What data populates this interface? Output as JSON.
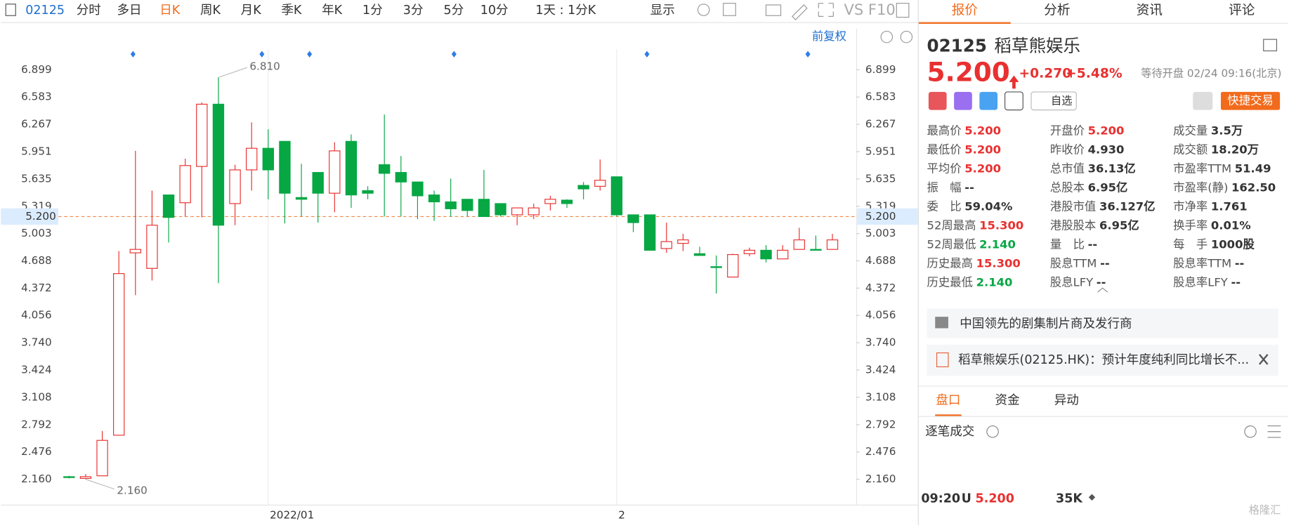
{
  "chart_data": {
    "type": "candlestick",
    "categories": [
      null,
      null,
      null,
      null,
      null,
      null,
      null,
      null,
      null,
      null,
      null,
      null,
      "2022/01",
      null,
      null,
      null,
      null,
      null,
      null,
      null,
      null,
      null,
      null,
      null,
      null,
      null,
      null,
      null,
      null,
      null,
      null,
      null,
      null,
      "2",
      null,
      null,
      null,
      null,
      null,
      null,
      null,
      null,
      null,
      null,
      null,
      null,
      null
    ],
    "open": [
      2.19,
      2.17,
      2.2,
      2.67,
      4.78,
      4.6,
      5.45,
      5.36,
      5.78,
      6.5,
      5.35,
      5.74,
      5.99,
      6.07,
      5.42,
      5.71,
      5.47,
      6.07,
      5.5,
      5.8,
      5.71,
      5.6,
      5.45,
      5.37,
      5.4,
      5.4,
      5.35,
      5.22,
      5.22,
      5.35,
      5.39,
      5.56,
      5.55,
      5.66,
      5.22,
      5.22,
      4.83,
      4.89,
      4.77,
      4.62,
      4.5,
      4.77,
      4.81,
      4.71,
      4.82,
      4.82,
      4.82
    ],
    "high": [
      2.2,
      2.22,
      2.72,
      4.8,
      5.96,
      5.5,
      5.45,
      5.87,
      6.52,
      6.81,
      5.8,
      6.29,
      6.21,
      6.07,
      5.81,
      5.71,
      6.06,
      6.15,
      5.55,
      6.38,
      5.9,
      5.6,
      5.5,
      5.64,
      5.4,
      5.74,
      5.35,
      5.3,
      5.35,
      5.44,
      5.4,
      5.6,
      5.86,
      5.66,
      5.22,
      5.22,
      5.13,
      5.0,
      4.85,
      4.75,
      4.77,
      4.84,
      4.87,
      4.87,
      5.07,
      4.98,
      5.0
    ],
    "low": [
      2.17,
      2.16,
      2.2,
      2.67,
      4.29,
      4.46,
      4.9,
      5.2,
      5.19,
      4.43,
      5.1,
      5.5,
      5.4,
      5.12,
      5.2,
      5.13,
      5.25,
      5.3,
      5.4,
      5.2,
      5.2,
      5.17,
      5.15,
      5.2,
      5.2,
      5.2,
      5.2,
      5.1,
      5.17,
      5.27,
      5.3,
      5.4,
      5.5,
      5.2,
      5.02,
      4.81,
      4.78,
      4.8,
      4.75,
      4.31,
      4.5,
      4.74,
      4.67,
      4.71,
      4.82,
      4.81,
      4.82
    ],
    "close": [
      2.18,
      2.19,
      2.61,
      4.54,
      4.82,
      5.1,
      5.19,
      5.79,
      6.5,
      5.1,
      5.74,
      5.99,
      5.74,
      5.47,
      5.4,
      5.47,
      5.96,
      5.45,
      5.47,
      5.7,
      5.6,
      5.44,
      5.37,
      5.29,
      5.27,
      5.2,
      5.22,
      5.3,
      5.3,
      5.4,
      5.35,
      5.52,
      5.62,
      5.22,
      5.13,
      4.81,
      4.91,
      4.93,
      4.75,
      4.61,
      4.76,
      4.81,
      4.71,
      4.81,
      4.93,
      4.81,
      4.93
    ],
    "up_color": "#e93030",
    "down_color": "#07a744",
    "ylim": [
      1.866,
      7.117
    ],
    "yticks": [
      6.899,
      6.583,
      6.267,
      5.951,
      5.635,
      5.319,
      5.003,
      4.688,
      4.372,
      4.056,
      {
        "value": 3.74,
        "label": "3.740"
      },
      3.424,
      3.108,
      2.792,
      2.476,
      {
        "value": 2.16,
        "label": "2.160"
      }
    ],
    "grid": false,
    "max_label": "6.810",
    "min_label": "2.160",
    "last_price": {
      "value": 5.2,
      "label": "5.200"
    },
    "adjust": "前复权"
  },
  "ui": {
    "toolbar": {
      "code": "02125",
      "periods": [
        "分时",
        "多日",
        "日K",
        "周K",
        "月K",
        "季K",
        "年K",
        "1分",
        "3分",
        "5分",
        "10分"
      ],
      "active": 2,
      "interval": "1天 : 1分K",
      "display": "显示"
    },
    "quote": {
      "tabs": [
        "报价",
        "分析",
        "资讯",
        "评论"
      ],
      "active": 0,
      "code": "02125",
      "name": "稻草熊娱乐",
      "price": "5.200",
      "change": "+0.270",
      "change_pct": "+5.48%",
      "status": "等待开盘 02/24 09:16(北京)",
      "watch": "自选",
      "trade": "快捷交易",
      "stats": [
        [
          {
            "label": "最高价",
            "value": "5.200",
            "color": "#e93030"
          },
          {
            "label": "最低价",
            "value": "5.200",
            "color": "#e93030"
          },
          {
            "label": "平均价",
            "value": "5.200",
            "color": "#e93030"
          },
          {
            "label": "振　幅",
            "value": "--"
          },
          {
            "label": "委　比",
            "value": "59.04%"
          },
          {
            "label": "52周最高",
            "value": "15.300",
            "color": "#e93030"
          },
          {
            "label": "52周最低",
            "value": "2.140",
            "color": "#07a744"
          },
          {
            "label": "历史最高",
            "value": "15.300",
            "color": "#e93030"
          },
          {
            "label": "历史最低",
            "value": "2.140",
            "color": "#07a744"
          }
        ],
        [
          {
            "label": "开盘价",
            "value": "5.200",
            "color": "#e93030"
          },
          {
            "label": "昨收价",
            "value": "4.930"
          },
          {
            "label": "总市值",
            "value": "36.13亿"
          },
          {
            "label": "总股本",
            "value": "6.95亿"
          },
          {
            "label": "港股市值",
            "value": "36.127亿"
          },
          {
            "label": "港股股本",
            "value": "6.95亿"
          },
          {
            "label": "量　比",
            "value": "--"
          },
          {
            "label": "股息TTM",
            "value": "--"
          },
          {
            "label": "股息LFY",
            "value": "--"
          }
        ],
        [
          {
            "label": "成交量",
            "value": "3.5万"
          },
          {
            "label": "成交额",
            "value": "18.20万"
          },
          {
            "label": "市盈率TTM",
            "value": "51.49"
          },
          {
            "label": "市盈率(静)",
            "value": "162.50"
          },
          {
            "label": "市净率",
            "value": "1.761"
          },
          {
            "label": "换手率",
            "value": "0.01%"
          },
          {
            "label": "每　手",
            "value": "1000股"
          },
          {
            "label": "股息率TTM",
            "value": "--"
          },
          {
            "label": "股息率LFY",
            "value": "--"
          }
        ]
      ],
      "profile": "中国领先的剧集制片商及发行商",
      "news": "稻草熊娱乐(02125.HK)：预计年度纯利同比增长不...",
      "bottom_tabs": [
        "盘口",
        "资金",
        "异动"
      ],
      "trades_title": "逐笔成交",
      "trades": [
        {
          "time": "09:20",
          "flag": "U",
          "price": "5.200",
          "volume": "35K"
        }
      ],
      "watermark": "格隆汇"
    }
  }
}
